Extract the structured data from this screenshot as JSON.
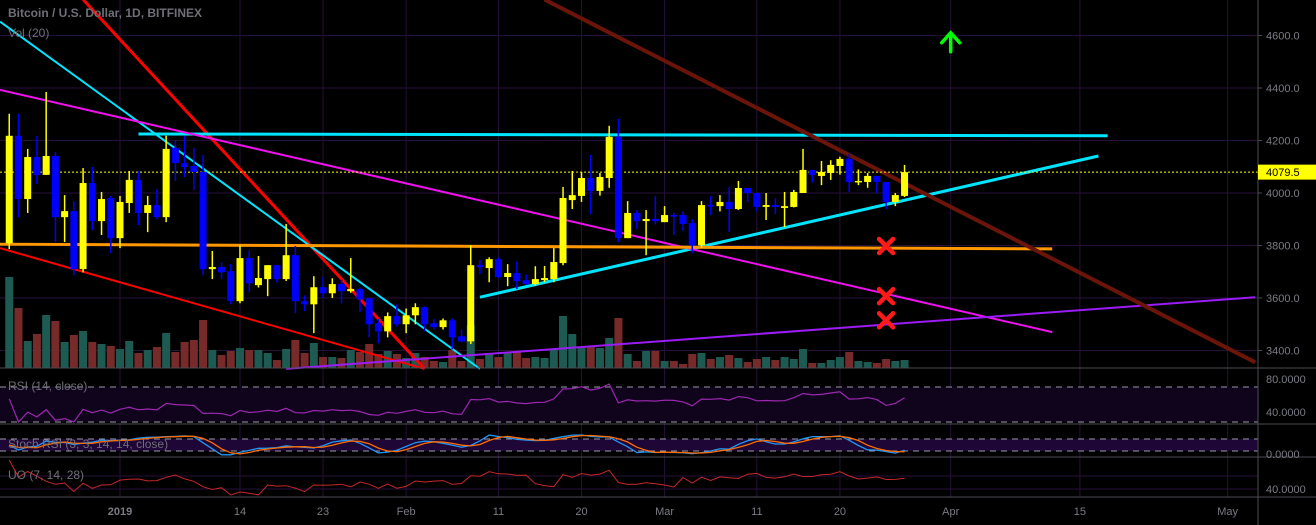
{
  "header": {
    "title": "Bitcoin / U.S. Dollar, 1D, BITFINEX",
    "volume_label": "Vol (20)"
  },
  "indicators": {
    "rsi_label": "RSI (14, close)",
    "stoch_label": "Stoch RSI (3, 3, 14, 14, close)",
    "uo_label": "UO (7, 14, 28)",
    "rsi_ticks": [
      "80.0000",
      "40.0000"
    ],
    "stoch_ticks": [
      "0.0000"
    ],
    "uo_ticks": [
      "40.0000"
    ]
  },
  "chart_data": {
    "type": "candlestick",
    "symbol": "BTCUSD",
    "interval": "1D",
    "last_price": 4079.5,
    "last_price_label": "4079.5",
    "ylim": [
      3330,
      4740
    ],
    "price_ticks": [
      "3400.0",
      "3600.0",
      "4000.0",
      "3800.0",
      "4200.0",
      "4400.0",
      "4600.0"
    ],
    "price_tick_values": [
      3400,
      3600,
      4000,
      3800,
      4200,
      4400,
      4600
    ],
    "time_ticks": [
      {
        "label": "2019",
        "date": "2019-01-01"
      },
      {
        "label": "14",
        "date": "2019-01-14"
      },
      {
        "label": "23",
        "date": "2019-01-23"
      },
      {
        "label": "Feb",
        "date": "2019-02-01"
      },
      {
        "label": "11",
        "date": "2019-02-11"
      },
      {
        "label": "20",
        "date": "2019-02-20"
      },
      {
        "label": "Mar",
        "date": "2019-03-01"
      },
      {
        "label": "11",
        "date": "2019-03-11"
      },
      {
        "label": "20",
        "date": "2019-03-20"
      },
      {
        "label": "Apr",
        "date": "2019-04-01"
      },
      {
        "label": "15",
        "date": "2019-04-15"
      },
      {
        "label": "May",
        "date": "2019-05-01"
      }
    ],
    "grid": true,
    "colors": {
      "up": "#ffff00",
      "down": "#0000ff",
      "vol_up": "#1d5a52",
      "vol_down": "#772a2a",
      "rsi": "#9c27b0",
      "stoch_k": "#2196f3",
      "stoch_d": "#ff6d00",
      "uo": "#c62828",
      "last_price": "#ffff00"
    },
    "candles_columns": [
      "date",
      "open",
      "high",
      "low",
      "close",
      "volume_relative"
    ],
    "candles": [
      [
        "2018-12-20",
        3809,
        4302,
        3786,
        4218,
        91
      ],
      [
        "2018-12-21",
        4218,
        4302,
        3908,
        3977,
        60
      ],
      [
        "2018-12-22",
        3977,
        4168,
        3924,
        4137,
        27
      ],
      [
        "2018-12-23",
        4137,
        4218,
        4034,
        4069,
        34
      ],
      [
        "2018-12-24",
        4069,
        4385,
        4069,
        4141,
        53
      ],
      [
        "2018-12-25",
        4141,
        4156,
        3813,
        3908,
        47
      ],
      [
        "2018-12-26",
        3908,
        3992,
        3813,
        3931,
        26
      ],
      [
        "2018-12-27",
        3931,
        3969,
        3687,
        3710,
        33
      ],
      [
        "2018-12-28",
        3710,
        4095,
        3698,
        4038,
        37
      ],
      [
        "2018-12-29",
        4038,
        4099,
        3859,
        3893,
        26
      ],
      [
        "2018-12-30",
        3893,
        4004,
        3840,
        3977,
        24
      ],
      [
        "2018-12-31",
        3981,
        3989,
        3771,
        3828,
        22
      ],
      [
        "2019-01-01",
        3828,
        3989,
        3790,
        3966,
        19
      ],
      [
        "2019-01-02",
        3962,
        4084,
        3924,
        4050,
        27
      ],
      [
        "2019-01-03",
        4050,
        4084,
        3878,
        3924,
        15
      ],
      [
        "2019-01-04",
        3924,
        3989,
        3851,
        3954,
        18
      ],
      [
        "2019-01-05",
        3954,
        4015,
        3900,
        3908,
        21
      ],
      [
        "2019-01-06",
        3908,
        4218,
        3889,
        4168,
        35
      ],
      [
        "2019-01-07",
        4172,
        4198,
        4046,
        4114,
        16
      ],
      [
        "2019-01-08",
        4114,
        4218,
        4061,
        4099,
        26
      ],
      [
        "2019-01-09",
        4103,
        4172,
        4011,
        4080,
        28
      ],
      [
        "2019-01-10",
        4080,
        4145,
        3687,
        3710,
        48
      ],
      [
        "2019-01-11",
        3710,
        3779,
        3672,
        3718,
        18
      ],
      [
        "2019-01-12",
        3718,
        3737,
        3672,
        3698,
        13
      ],
      [
        "2019-01-13",
        3702,
        3729,
        3576,
        3588,
        17
      ],
      [
        "2019-01-14",
        3588,
        3801,
        3580,
        3752,
        20
      ],
      [
        "2019-01-15",
        3752,
        3782,
        3622,
        3656,
        18
      ],
      [
        "2019-01-16",
        3649,
        3760,
        3640,
        3676,
        18
      ],
      [
        "2019-01-17",
        3672,
        3725,
        3607,
        3725,
        15
      ],
      [
        "2019-01-18",
        3725,
        3725,
        3660,
        3672,
        8
      ],
      [
        "2019-01-19",
        3672,
        3882,
        3665,
        3763,
        19
      ],
      [
        "2019-01-20",
        3763,
        3798,
        3542,
        3588,
        28
      ],
      [
        "2019-01-21",
        3588,
        3610,
        3550,
        3576,
        15
      ],
      [
        "2019-01-22",
        3576,
        3683,
        3466,
        3641,
        25
      ],
      [
        "2019-01-23",
        3641,
        3680,
        3600,
        3618,
        11
      ],
      [
        "2019-01-24",
        3618,
        3675,
        3600,
        3653,
        11
      ],
      [
        "2019-01-25",
        3653,
        3670,
        3580,
        3626,
        10
      ],
      [
        "2019-01-26",
        3626,
        3752,
        3620,
        3634,
        18
      ],
      [
        "2019-01-27",
        3634,
        3640,
        3546,
        3595,
        16
      ],
      [
        "2019-01-28",
        3599,
        3600,
        3450,
        3500,
        24
      ],
      [
        "2019-01-29",
        3504,
        3520,
        3427,
        3473,
        14
      ],
      [
        "2019-01-30",
        3473,
        3545,
        3450,
        3531,
        17
      ],
      [
        "2019-01-31",
        3531,
        3576,
        3490,
        3500,
        14
      ],
      [
        "2019-02-01",
        3500,
        3560,
        3466,
        3534,
        10
      ],
      [
        "2019-02-02",
        3534,
        3580,
        3500,
        3565,
        15
      ],
      [
        "2019-02-03",
        3565,
        3568,
        3473,
        3500,
        11
      ],
      [
        "2019-02-04",
        3504,
        3520,
        3480,
        3489,
        7
      ],
      [
        "2019-02-05",
        3489,
        3522,
        3480,
        3515,
        6
      ],
      [
        "2019-02-06",
        3515,
        3522,
        3405,
        3450,
        18
      ],
      [
        "2019-02-07",
        3454,
        3480,
        3430,
        3435,
        7
      ],
      [
        "2019-02-08",
        3435,
        3801,
        3425,
        3725,
        43
      ],
      [
        "2019-02-09",
        3725,
        3745,
        3691,
        3718,
        9
      ],
      [
        "2019-02-10",
        3714,
        3755,
        3660,
        3748,
        14
      ],
      [
        "2019-02-11",
        3748,
        3755,
        3675,
        3680,
        11
      ],
      [
        "2019-02-12",
        3680,
        3729,
        3645,
        3695,
        16
      ],
      [
        "2019-02-13",
        3695,
        3740,
        3634,
        3664,
        16
      ],
      [
        "2019-02-14",
        3668,
        3690,
        3650,
        3653,
        10
      ],
      [
        "2019-02-15",
        3653,
        3721,
        3648,
        3672,
        11
      ],
      [
        "2019-02-16",
        3668,
        3722,
        3660,
        3676,
        10
      ],
      [
        "2019-02-17",
        3672,
        3790,
        3660,
        3737,
        19
      ],
      [
        "2019-02-18",
        3733,
        4023,
        3725,
        3981,
        52
      ],
      [
        "2019-02-19",
        3973,
        4084,
        3939,
        3992,
        34
      ],
      [
        "2019-02-20",
        3989,
        4080,
        3966,
        4057,
        21
      ],
      [
        "2019-02-21",
        4057,
        4145,
        3920,
        4008,
        21
      ],
      [
        "2019-02-22",
        4008,
        4076,
        3990,
        4061,
        20
      ],
      [
        "2019-02-23",
        4057,
        4256,
        4020,
        4214,
        30
      ],
      [
        "2019-02-24",
        4214,
        4282,
        3813,
        3828,
        50
      ],
      [
        "2019-02-25",
        3828,
        3969,
        3828,
        3924,
        14
      ],
      [
        "2019-02-26",
        3924,
        3935,
        3863,
        3893,
        7
      ],
      [
        "2019-02-27",
        3893,
        3935,
        3763,
        3901,
        17
      ],
      [
        "2019-02-28",
        3901,
        3989,
        3880,
        3893,
        17
      ],
      [
        "2019-03-01",
        3889,
        3950,
        3889,
        3916,
        7
      ],
      [
        "2019-03-02",
        3916,
        3925,
        3840,
        3912,
        7
      ],
      [
        "2019-03-03",
        3916,
        3930,
        3855,
        3882,
        4
      ],
      [
        "2019-03-04",
        3885,
        3900,
        3771,
        3801,
        14
      ],
      [
        "2019-03-05",
        3801,
        3969,
        3790,
        3954,
        15
      ],
      [
        "2019-03-06",
        3954,
        3989,
        3916,
        3950,
        9
      ],
      [
        "2019-03-07",
        3950,
        3992,
        3930,
        3966,
        11
      ],
      [
        "2019-03-08",
        3966,
        4023,
        3851,
        3939,
        13
      ],
      [
        "2019-03-09",
        3939,
        4046,
        3935,
        4019,
        10
      ],
      [
        "2019-03-10",
        4019,
        4019,
        3965,
        4000,
        6
      ],
      [
        "2019-03-11",
        4000,
        4000,
        3930,
        3947,
        9
      ],
      [
        "2019-03-12",
        3947,
        4000,
        3897,
        3954,
        11
      ],
      [
        "2019-03-13",
        3954,
        3980,
        3920,
        3947,
        8
      ],
      [
        "2019-03-14",
        3943,
        4004,
        3870,
        3950,
        11
      ],
      [
        "2019-03-15",
        3947,
        4012,
        3945,
        4004,
        9
      ],
      [
        "2019-03-16",
        4000,
        4168,
        4000,
        4088,
        19
      ],
      [
        "2019-03-17",
        4088,
        4088,
        4040,
        4069,
        5
      ],
      [
        "2019-03-18",
        4065,
        4122,
        4030,
        4080,
        5
      ],
      [
        "2019-03-19",
        4076,
        4125,
        4050,
        4107,
        8
      ],
      [
        "2019-03-20",
        4103,
        4138,
        4070,
        4130,
        11
      ],
      [
        "2019-03-21",
        4130,
        4149,
        4004,
        4042,
        16
      ],
      [
        "2019-03-22",
        4042,
        4090,
        4030,
        4046,
        7
      ],
      [
        "2019-03-23",
        4042,
        4076,
        4020,
        4065,
        6
      ],
      [
        "2019-03-24",
        4065,
        4065,
        4000,
        4042,
        5
      ],
      [
        "2019-03-25",
        4042,
        4042,
        3939,
        3966,
        9
      ],
      [
        "2019-03-26",
        3966,
        4000,
        3950,
        3992,
        7
      ],
      [
        "2019-03-27",
        3989,
        4107,
        3985,
        4079.5,
        8
      ]
    ],
    "drawings": [
      {
        "name": "red-steep-trendline",
        "color": "#ff0000",
        "width": 3,
        "from": [
          "2018-12-28",
          4737
        ],
        "to": [
          "2019-02-03",
          3330
        ]
      },
      {
        "name": "red-lower-trendline",
        "color": "#ff0000",
        "width": 2,
        "from": [
          "2018-12-19",
          3790
        ],
        "to": [
          "2019-02-03",
          3330
        ]
      },
      {
        "name": "cyan-descending-trendline",
        "color": "#00e5ff",
        "width": 2,
        "from": [
          "2018-12-19",
          4653
        ],
        "to": [
          "2019-02-09",
          3330
        ]
      },
      {
        "name": "cyan-resistance-line",
        "color": "#00e5ff",
        "width": 3,
        "from": [
          "2019-01-03",
          4225
        ],
        "to": [
          "2019-04-18",
          4218
        ]
      },
      {
        "name": "cyan-rising-support",
        "color": "#00e5ff",
        "width": 3,
        "from": [
          "2019-02-09",
          3603
        ],
        "to": [
          "2019-04-17",
          4141
        ]
      },
      {
        "name": "magenta-trendline",
        "color": "#ee11ee",
        "width": 2,
        "from": [
          "2018-12-19",
          4393
        ],
        "to": [
          "2019-04-12",
          3470
        ]
      },
      {
        "name": "orange-support-line",
        "color": "#ff9800",
        "width": 3,
        "from": [
          "2018-12-19",
          3805
        ],
        "to": [
          "2019-04-12",
          3787
        ]
      },
      {
        "name": "purple-trendline",
        "color": "#9b1cf5",
        "width": 2,
        "from": [
          "2019-01-19",
          3330
        ],
        "to": [
          "2019-05-04",
          3603
        ]
      },
      {
        "name": "brown-descending-trendline",
        "color": "#6b1408",
        "width": 4,
        "from": [
          "2019-02-16",
          4737
        ],
        "to": [
          "2019-05-04",
          3355
        ]
      }
    ],
    "markers": [
      {
        "name": "red-x-marker",
        "type": "x",
        "color": "#ff1a1a",
        "date": "2019-03-25",
        "price": 3798
      },
      {
        "name": "red-x-marker",
        "type": "x",
        "color": "#ff1a1a",
        "date": "2019-03-25",
        "price": 3607
      },
      {
        "name": "red-x-marker",
        "type": "x",
        "color": "#ff1a1a",
        "date": "2019-03-25",
        "price": 3515
      },
      {
        "name": "green-up-arrow-marker",
        "type": "arrow-up",
        "color": "#00ff00",
        "date": "2019-04-01",
        "price": 4580
      }
    ]
  }
}
